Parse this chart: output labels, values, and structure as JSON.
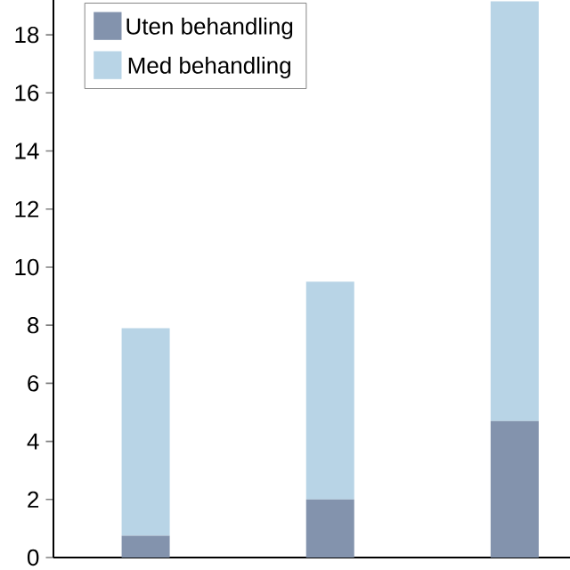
{
  "chart_data": {
    "type": "bar",
    "stacked": true,
    "categories": [
      null,
      null,
      null
    ],
    "series": [
      {
        "name": "Uten behandling",
        "color": "#8393ad",
        "values": [
          0.75,
          2.0,
          4.7
        ]
      },
      {
        "name": "Med behandling",
        "color": "#b8d4e6",
        "values": [
          7.15,
          7.5,
          14.45
        ]
      }
    ],
    "ylim": [
      0,
      19.2
    ],
    "yticks": [
      0,
      2,
      4,
      6,
      8,
      10,
      12,
      14,
      16,
      18
    ],
    "legend": "top left",
    "grid": false
  }
}
